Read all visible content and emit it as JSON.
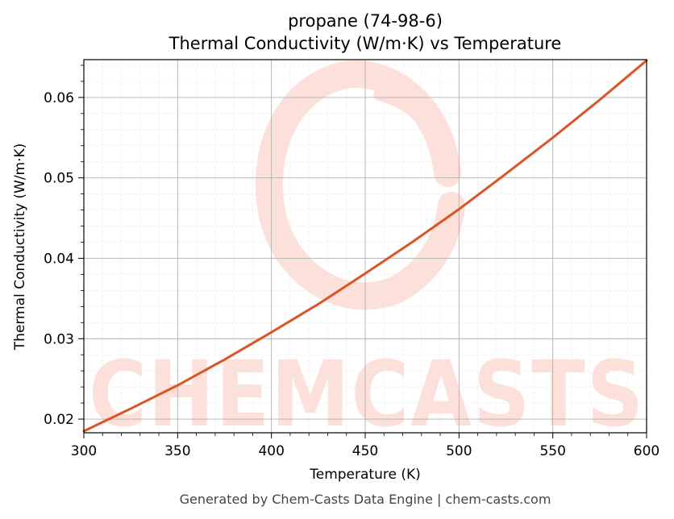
{
  "chart_data": {
    "type": "line",
    "title": "propane (74-98-6)",
    "subtitle": "Thermal Conductivity (W/m·K) vs Temperature",
    "xlabel": "Temperature (K)",
    "ylabel": "Thermal Conductivity (W/m·K)",
    "xlim": [
      300,
      600
    ],
    "ylim": [
      0.0183,
      0.0647
    ],
    "xticks": [
      300,
      350,
      400,
      450,
      500,
      550,
      600
    ],
    "yticks": [
      0.02,
      0.03,
      0.04,
      0.05,
      0.06
    ],
    "xtick_labels": [
      "300",
      "350",
      "400",
      "450",
      "500",
      "550",
      "600"
    ],
    "ytick_labels": [
      "0.02",
      "0.03",
      "0.04",
      "0.05",
      "0.06"
    ],
    "grid": true,
    "series": [
      {
        "color": "#d95525",
        "x": [
          300,
          325,
          350,
          375,
          400,
          425,
          450,
          475,
          500,
          525,
          550,
          575,
          600
        ],
        "y": [
          0.0185,
          0.0213,
          0.0242,
          0.0274,
          0.0308,
          0.0343,
          0.0381,
          0.042,
          0.0461,
          0.0505,
          0.055,
          0.0597,
          0.0646
        ]
      }
    ]
  },
  "watermark": {
    "text": "CHEMCASTS",
    "color": "#fde0da"
  },
  "footer": "Generated by Chem-Casts Data Engine | chem-casts.com"
}
